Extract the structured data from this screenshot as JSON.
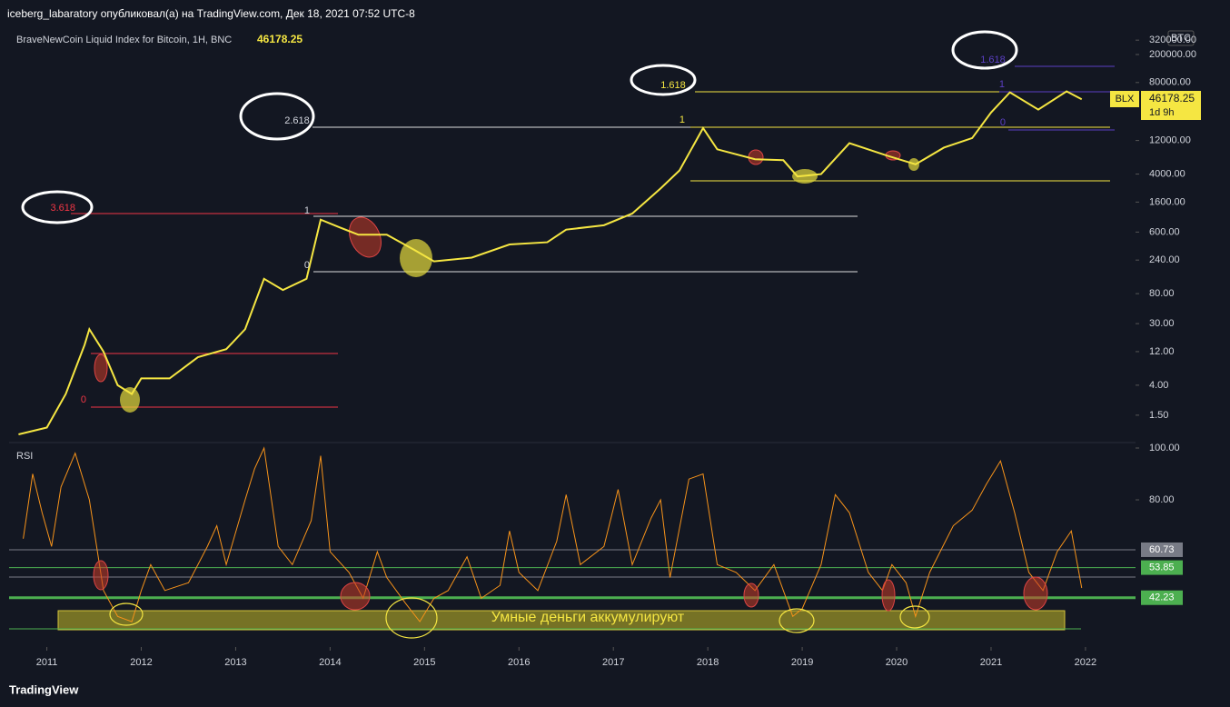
{
  "header": {
    "author_line": "iceberg_labaratory опубликовал(а) на TradingView.com, Дек 18, 2021 07:52 UTC-8"
  },
  "legend": {
    "symbol": "BraveNewCoin Liquid Index for Bitcoin, 1H, BNC",
    "last_price": 46178.25,
    "currency": "BTC",
    "tag": "BLX",
    "countdown": "1d 9h"
  },
  "chart_data": [
    {
      "type": "line",
      "name": "price",
      "log_scale": true,
      "color": "#f5e642",
      "x": [
        2010.7,
        2011.0,
        2011.2,
        2011.4,
        2011.45,
        2011.6,
        2011.75,
        2011.9,
        2012.0,
        2012.3,
        2012.6,
        2012.9,
        2013.1,
        2013.3,
        2013.5,
        2013.75,
        2013.9,
        2014.1,
        2014.3,
        2014.6,
        2014.9,
        2015.1,
        2015.5,
        2015.9,
        2016.3,
        2016.5,
        2016.9,
        2017.2,
        2017.5,
        2017.7,
        2017.95,
        2018.1,
        2018.5,
        2018.8,
        2018.95,
        2019.2,
        2019.5,
        2019.9,
        2020.2,
        2020.5,
        2020.8,
        2021.0,
        2021.2,
        2021.5,
        2021.8,
        2021.96
      ],
      "values": [
        0.8,
        1.0,
        3,
        15,
        25,
        12,
        4,
        3,
        5,
        5,
        10,
        13,
        25,
        130,
        90,
        130,
        900,
        700,
        550,
        550,
        330,
        230,
        260,
        400,
        430,
        650,
        750,
        1100,
        2500,
        4500,
        18000,
        9000,
        6500,
        6300,
        3700,
        4000,
        11000,
        7300,
        5500,
        9500,
        13000,
        30000,
        58000,
        33000,
        60000,
        46178.25
      ],
      "xlim": [
        2010.6,
        2022.53
      ],
      "xticks": [
        2011,
        2012,
        2013,
        2014,
        2015,
        2016,
        2017,
        2018,
        2019,
        2020,
        2021,
        2022
      ],
      "ylim": [
        0.65,
        566000
      ],
      "yticks": [
        {
          "value": 320000,
          "label": "320000.00"
        },
        {
          "value": 200000,
          "label": "200000.00"
        },
        {
          "value": 80000,
          "label": "80000.00"
        },
        {
          "value": 12000,
          "label": "12000.00"
        },
        {
          "value": 4000,
          "label": "4000.00"
        },
        {
          "value": 1600,
          "label": "1600.00"
        },
        {
          "value": 600,
          "label": "600.00"
        },
        {
          "value": 240,
          "label": "240.00"
        },
        {
          "value": 80,
          "label": "80.00"
        },
        {
          "value": 30,
          "label": "30.00"
        },
        {
          "value": 12,
          "label": "12.00"
        },
        {
          "value": 4,
          "label": "4.00"
        },
        {
          "value": 1.5,
          "label": "1.50"
        }
      ]
    },
    {
      "type": "line",
      "name": "RSI",
      "color": "#f7931a",
      "x": [
        2010.75,
        2010.85,
        2010.95,
        2011.05,
        2011.15,
        2011.3,
        2011.45,
        2011.6,
        2011.75,
        2011.9,
        2012.0,
        2012.1,
        2012.25,
        2012.5,
        2012.7,
        2012.8,
        2012.9,
        2013.1,
        2013.2,
        2013.3,
        2013.45,
        2013.6,
        2013.8,
        2013.9,
        2014.0,
        2014.2,
        2014.35,
        2014.5,
        2014.6,
        2014.8,
        2014.95,
        2015.1,
        2015.25,
        2015.45,
        2015.6,
        2015.8,
        2015.9,
        2016.0,
        2016.2,
        2016.4,
        2016.5,
        2016.65,
        2016.9,
        2017.05,
        2017.2,
        2017.4,
        2017.5,
        2017.6,
        2017.8,
        2017.95,
        2018.1,
        2018.3,
        2018.5,
        2018.7,
        2018.9,
        2019.0,
        2019.2,
        2019.35,
        2019.5,
        2019.7,
        2019.85,
        2019.95,
        2020.1,
        2020.2,
        2020.35,
        2020.6,
        2020.8,
        2020.95,
        2021.1,
        2021.25,
        2021.4,
        2021.55,
        2021.7,
        2021.85,
        2021.96
      ],
      "values": [
        65,
        90,
        75,
        62,
        85,
        98,
        80,
        45,
        35,
        33,
        45,
        55,
        45,
        48,
        62,
        70,
        55,
        80,
        92,
        100,
        62,
        55,
        72,
        97,
        60,
        52,
        42,
        60,
        50,
        40,
        33,
        42,
        45,
        58,
        42,
        47,
        68,
        52,
        45,
        64,
        82,
        55,
        62,
        84,
        55,
        73,
        80,
        50,
        88,
        90,
        55,
        52,
        45,
        55,
        35,
        38,
        55,
        82,
        75,
        52,
        45,
        55,
        48,
        35,
        52,
        70,
        76,
        86,
        95,
        75,
        52,
        45,
        60,
        68,
        46
      ],
      "xlim": [
        2010.6,
        2022.53
      ],
      "ylim": [
        23.9,
        102.1
      ],
      "yticks": [
        {
          "value": 100,
          "label": "100.00"
        },
        {
          "value": 80,
          "label": "80.00"
        }
      ],
      "levels": [
        {
          "value": 60.73,
          "label": "60.73",
          "color": "#787b86"
        },
        {
          "value": 53.85,
          "label": "53.85",
          "color": "#4caf50"
        },
        {
          "value": 42.23,
          "label": "42.23",
          "color": "#4caf50"
        }
      ]
    }
  ],
  "annotations": [
    "3.618",
    "0",
    "1",
    "0",
    "2.618",
    "1",
    "1.618",
    "1.618",
    "1",
    "0",
    "Умные деньги аккумулируют"
  ],
  "footer": {
    "brand": "TradingView"
  }
}
